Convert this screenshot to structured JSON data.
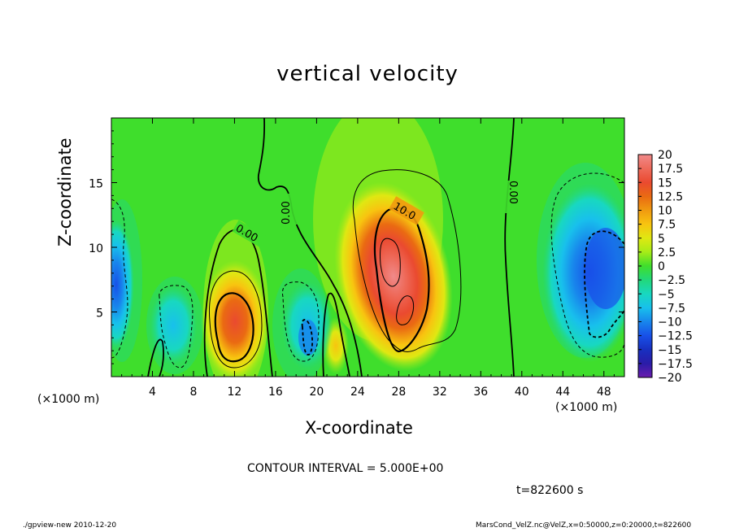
{
  "chart_data": {
    "type": "heatmap",
    "title": "vertical velocity",
    "xlabel": "X-coordinate",
    "ylabel": "Z-coordinate",
    "x_unit": "(×1000 m)",
    "xlim": [
      0,
      50
    ],
    "ylim": [
      0,
      20
    ],
    "x_ticks": [
      4,
      8,
      12,
      16,
      20,
      24,
      28,
      32,
      36,
      40,
      44,
      48
    ],
    "y_ticks": [
      5,
      10,
      15
    ],
    "colorbar": {
      "levels": [
        20,
        17.5,
        15,
        12.5,
        10,
        7.5,
        5,
        2.5,
        0,
        -2.5,
        -5,
        -7.5,
        -10,
        -12.5,
        -15,
        -17.5,
        -20
      ],
      "labels": [
        "20",
        "17.5",
        "15",
        "12.5",
        "10",
        "7.5",
        "5",
        "2.5",
        "0",
        "−2.5",
        "−5",
        "−7.5",
        "−10",
        "−12.5",
        "−15",
        "−17.5",
        "−20"
      ],
      "colors": [
        "#f08a8a",
        "#ee6a5a",
        "#ea4a30",
        "#ea6a12",
        "#f09a10",
        "#f8c410",
        "#dfe812",
        "#a6ec18",
        "#3fde2c",
        "#22d87a",
        "#18d8c0",
        "#18c0ec",
        "#1886ec",
        "#1850e8",
        "#1830c0",
        "#2a1ca8",
        "#6a1cae"
      ]
    },
    "contour_labels": [
      "0.00",
      "0.00",
      "10.0",
      "0.00"
    ],
    "features": [
      {
        "kind": "updraft",
        "x": 12,
        "z": 4,
        "value": 15
      },
      {
        "kind": "updraft",
        "x": 27.5,
        "z": 7.5,
        "value": 17.5
      },
      {
        "kind": "updraft",
        "x": 22,
        "z": 2.2,
        "value": 7.5
      },
      {
        "kind": "downdraft",
        "x": 19,
        "z": 3,
        "value": -10
      },
      {
        "kind": "downdraft",
        "x": 47.5,
        "z": 8,
        "value": -12.5
      },
      {
        "kind": "downdraft",
        "x": 0.5,
        "z": 7,
        "value": -7.5
      },
      {
        "kind": "downdraft",
        "x": 6.5,
        "z": 4.5,
        "value": -5
      }
    ]
  },
  "annotations": {
    "contour_interval": "CONTOUR INTERVAL = 5.000E+00",
    "time": "t=822600  s",
    "footer_left": "./gpview-new   2010-12-20",
    "footer_right": "MarsCond_VelZ.nc@VelZ,x=0:50000,z=0:20000,t=822600"
  }
}
